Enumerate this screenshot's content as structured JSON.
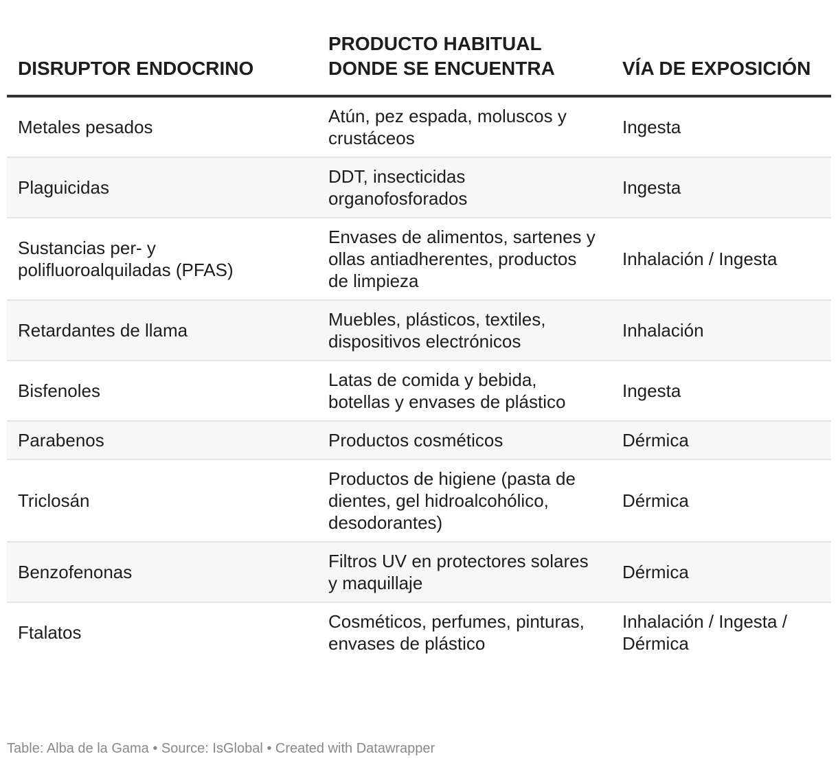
{
  "table": {
    "headers": [
      "DISRUPTOR ENDOCRINO",
      "PRODUCTO HABITUAL DONDE SE ENCUENTRA",
      "VÍA DE EXPOSICIÓN"
    ],
    "rows": [
      [
        "Metales pesados",
        "Atún, pez espada, moluscos y crustáceos",
        "Ingesta"
      ],
      [
        "Plaguicidas",
        "DDT, insecticidas organofosforados",
        "Ingesta"
      ],
      [
        "Sustancias per- y polifluoroalquiladas (PFAS)",
        "Envases de alimentos, sartenes y ollas antiadherentes, productos de limpieza",
        "Inhalación / Ingesta"
      ],
      [
        "Retardantes de llama",
        "Muebles, plásticos, textiles, dispositivos electrónicos",
        "Inhalación"
      ],
      [
        "Bisfenoles",
        "Latas de comida y bebida, botellas y envases de plástico",
        "Ingesta"
      ],
      [
        "Parabenos",
        "Productos cosméticos",
        "Dérmica"
      ],
      [
        "Triclosán",
        "Productos de higiene (pasta de dientes, gel hidroalcohólico, desodorantes)",
        "Dérmica"
      ],
      [
        "Benzofenonas",
        "Filtros UV en protectores solares y maquillaje",
        "Dérmica"
      ],
      [
        "Ftalatos",
        "Cosméticos, perfumes, pinturas, envases de plástico",
        "Inhalación / Ingesta / Dérmica"
      ]
    ]
  },
  "footer": {
    "text": "Table: Alba de la Gama • Source: IsGlobal • Created with Datawrapper"
  },
  "colors": {
    "header_rule": "#333333",
    "row_stripe": "#f7f7f7",
    "row_divider": "#e6e6e6",
    "footer_text": "#888888"
  }
}
